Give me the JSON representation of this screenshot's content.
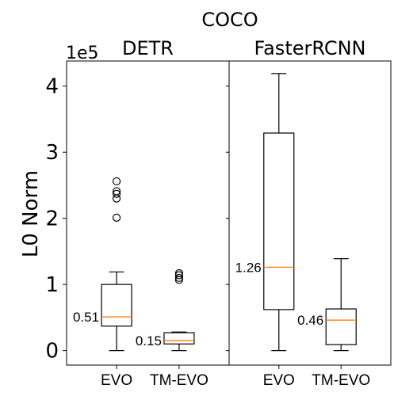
{
  "chart_data": {
    "type": "box",
    "title": "COCO",
    "ylabel": "L0 Norm",
    "y_offset_text": "1e5",
    "ylim": [
      -0.22,
      4.38
    ],
    "yticks": [
      0,
      1,
      2,
      3,
      4
    ],
    "yticklabels": [
      "0",
      "1",
      "2",
      "3",
      "4"
    ],
    "colors": {
      "median": "#ff7f0e",
      "box": "#000000"
    },
    "panels": [
      {
        "title": "DETR",
        "categories": [
          "EVO",
          "TM-EVO"
        ],
        "boxes": [
          {
            "category": "EVO",
            "min": 0.0,
            "q1": 0.37,
            "median": 0.51,
            "q3": 1.0,
            "max": 1.19,
            "fliers": [
              2.01,
              2.3,
              2.37,
              2.41,
              2.56
            ],
            "median_label": "0.51"
          },
          {
            "category": "TM-EVO",
            "min": 0.0,
            "q1": 0.1,
            "median": 0.15,
            "q3": 0.27,
            "max": 0.28,
            "fliers": [
              1.07,
              1.1,
              1.14,
              1.17
            ],
            "median_label": "0.15"
          }
        ]
      },
      {
        "title": "FasterRCNN",
        "categories": [
          "EVO",
          "TM-EVO"
        ],
        "boxes": [
          {
            "category": "EVO",
            "min": 0.0,
            "q1": 0.62,
            "median": 1.26,
            "q3": 3.29,
            "max": 4.19,
            "fliers": [],
            "median_label": "1.26"
          },
          {
            "category": "TM-EVO",
            "min": 0.0,
            "q1": 0.09,
            "median": 0.46,
            "q3": 0.63,
            "max": 1.39,
            "fliers": [],
            "median_label": "0.46"
          }
        ]
      }
    ]
  }
}
